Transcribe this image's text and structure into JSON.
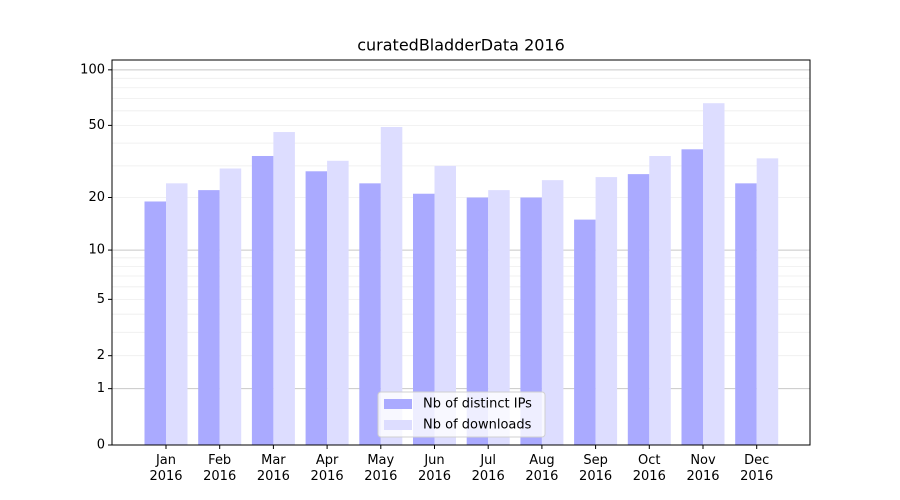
{
  "chart_data": {
    "type": "bar",
    "title": "curatedBladderData 2016",
    "categories": [
      "Jan\n2016",
      "Feb\n2016",
      "Mar\n2016",
      "Apr\n2016",
      "May\n2016",
      "Jun\n2016",
      "Jul\n2016",
      "Aug\n2016",
      "Sep\n2016",
      "Oct\n2016",
      "Nov\n2016",
      "Dec\n2016"
    ],
    "series": [
      {
        "name": "Nb of distinct IPs",
        "color": "#aaaaff",
        "values": [
          19,
          22,
          34,
          28,
          24,
          21,
          20,
          20,
          15,
          27,
          37,
          24
        ]
      },
      {
        "name": "Nb of downloads",
        "color": "#ddddff",
        "values": [
          24,
          29,
          46,
          32,
          49,
          30,
          22,
          25,
          26,
          34,
          66,
          33
        ]
      }
    ],
    "scale": "log1p",
    "ylim": [
      0,
      113
    ],
    "yticks": [
      0,
      1,
      2,
      5,
      10,
      20,
      50,
      100
    ],
    "major_grid": [
      1,
      10,
      100
    ],
    "minor_grid": [
      2,
      3,
      4,
      5,
      6,
      7,
      8,
      9,
      20,
      30,
      40,
      50,
      60,
      70,
      80,
      90
    ],
    "legend": "lower center"
  }
}
